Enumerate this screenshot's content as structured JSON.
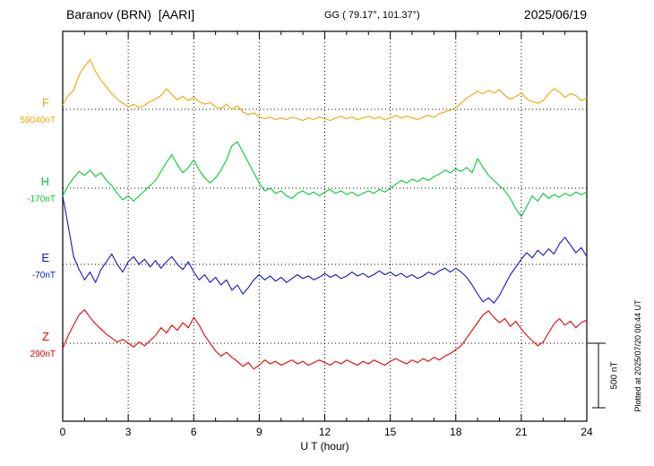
{
  "header": {
    "station": "Baranov (BRN)  [AARI]",
    "coords": "GG ( 79.17°, 101.37°)",
    "date": "2025/06/19"
  },
  "right_note": "Plotted at 2025/07/20 00:44 UT",
  "scale_bar": {
    "label": "500 nT",
    "nT": 500
  },
  "chart_data": {
    "type": "line",
    "title": "Baranov (BRN)  [AARI]",
    "xlabel": "U T (hour)",
    "x_range": [
      0,
      24
    ],
    "x_ticks": [
      0,
      3,
      6,
      9,
      12,
      15,
      18,
      21,
      24
    ],
    "x_step_hours": 0.25,
    "grid": "dotted",
    "scale_nT_per_division": 500,
    "series": [
      {
        "name": "F",
        "baseline_label": "59040nT",
        "baseline_value_nT": 59040,
        "color": "#f0a500",
        "offsets_nT": [
          33,
          107,
          147,
          267,
          333,
          387,
          293,
          227,
          173,
          120,
          80,
          47,
          20,
          40,
          13,
          33,
          60,
          80,
          107,
          160,
          113,
          73,
          100,
          67,
          93,
          60,
          40,
          53,
          20,
          7,
          40,
          0,
          27,
          -20,
          -40,
          -27,
          -60,
          -73,
          -60,
          -80,
          -67,
          -80,
          -60,
          -73,
          -87,
          -67,
          -80,
          -60,
          -73,
          -87,
          -67,
          -53,
          -73,
          -60,
          -80,
          -67,
          -53,
          -73,
          -60,
          -80,
          -67,
          -47,
          -67,
          -53,
          -67,
          -80,
          -60,
          -47,
          -60,
          -33,
          -20,
          -7,
          13,
          47,
          87,
          113,
          140,
          120,
          147,
          127,
          153,
          107,
          80,
          100,
          127,
          80,
          60,
          47,
          67,
          120,
          160,
          133,
          93,
          120,
          107,
          67,
          87
        ]
      },
      {
        "name": "H",
        "baseline_label": "-170nT",
        "baseline_value_nT": -170,
        "color": "#00cc33",
        "offsets_nT": [
          -60,
          20,
          80,
          130,
          100,
          140,
          90,
          120,
          60,
          20,
          -40,
          -90,
          -60,
          -100,
          -60,
          -20,
          20,
          60,
          130,
          200,
          260,
          180,
          120,
          160,
          220,
          140,
          80,
          40,
          80,
          140,
          220,
          330,
          360,
          280,
          200,
          120,
          40,
          -20,
          0,
          -40,
          -20,
          -60,
          -80,
          -40,
          -20,
          -50,
          -30,
          -60,
          -30,
          -10,
          -40,
          -20,
          -50,
          -30,
          -60,
          -40,
          -20,
          -40,
          -10,
          -30,
          0,
          30,
          60,
          40,
          70,
          50,
          80,
          60,
          90,
          110,
          140,
          120,
          150,
          130,
          160,
          120,
          230,
          160,
          100,
          60,
          20,
          -20,
          -80,
          -160,
          -220,
          -140,
          -60,
          -100,
          -40,
          -80,
          -50,
          -70,
          -40,
          -60,
          -30,
          -50,
          -30
        ]
      },
      {
        "name": "E",
        "baseline_label": "-70nT",
        "baseline_value_nT": -70,
        "color": "#1414cc",
        "offsets_nT": [
          530,
          300,
          60,
          -40,
          -120,
          -60,
          -140,
          -40,
          20,
          80,
          0,
          -60,
          20,
          60,
          0,
          40,
          -20,
          30,
          -30,
          20,
          60,
          0,
          -40,
          20,
          -60,
          -120,
          -80,
          -140,
          -100,
          -160,
          -120,
          -200,
          -160,
          -230,
          -180,
          -120,
          -80,
          -120,
          -90,
          -130,
          -100,
          -140,
          -110,
          -80,
          -110,
          -90,
          -120,
          -100,
          -70,
          -100,
          -80,
          -110,
          -90,
          -60,
          -90,
          -70,
          -100,
          -80,
          -50,
          -80,
          -60,
          -90,
          -70,
          -100,
          -80,
          -110,
          -90,
          -60,
          -80,
          -50,
          -30,
          -60,
          -30,
          -60,
          -100,
          -160,
          -230,
          -290,
          -260,
          -300,
          -240,
          -160,
          -80,
          -20,
          40,
          90,
          50,
          110,
          70,
          120,
          80,
          160,
          210,
          150,
          90,
          130,
          60
        ]
      },
      {
        "name": "Z",
        "baseline_label": "290nT",
        "baseline_value_nT": 290,
        "color": "#e60000",
        "offsets_nT": [
          -40,
          60,
          140,
          220,
          260,
          200,
          150,
          110,
          70,
          40,
          10,
          30,
          0,
          -30,
          10,
          -20,
          20,
          60,
          120,
          80,
          140,
          100,
          160,
          120,
          200,
          140,
          60,
          0,
          -60,
          -100,
          -70,
          -110,
          -140,
          -180,
          -150,
          -200,
          -170,
          -130,
          -160,
          -140,
          -170,
          -150,
          -130,
          -160,
          -140,
          -170,
          -150,
          -130,
          -150,
          -170,
          -140,
          -160,
          -130,
          -150,
          -170,
          -140,
          -160,
          -130,
          -150,
          -170,
          -140,
          -120,
          -140,
          -160,
          -130,
          -150,
          -120,
          -140,
          -110,
          -130,
          -100,
          -80,
          -50,
          -20,
          40,
          100,
          160,
          220,
          250,
          200,
          160,
          190,
          130,
          170,
          110,
          60,
          20,
          -20,
          10,
          80,
          150,
          190,
          140,
          170,
          120,
          160,
          180
        ]
      }
    ]
  }
}
